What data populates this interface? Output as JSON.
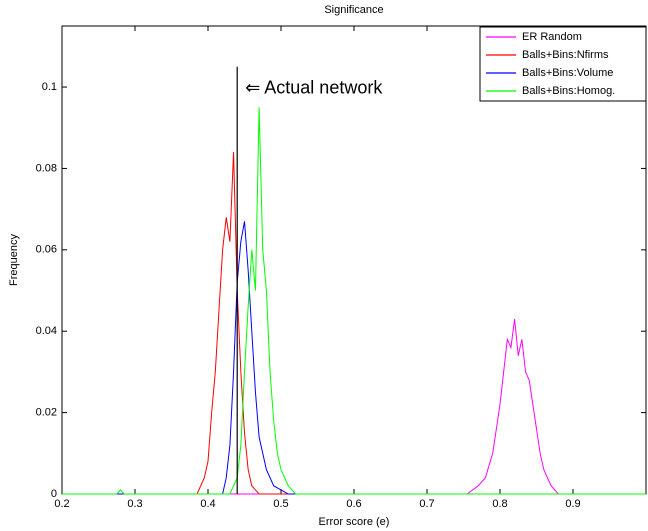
{
  "chart_data": {
    "type": "line",
    "title": "Significance",
    "x_label": "Error score (e)",
    "y_label": "Frequency",
    "xlim": [
      0.2,
      1.0
    ],
    "ylim": [
      0,
      0.115
    ],
    "xticks": [
      0.2,
      0.3,
      0.4,
      0.5,
      0.6,
      0.7,
      0.8,
      0.9
    ],
    "yticks": [
      0,
      0.02,
      0.04,
      0.06,
      0.08,
      0.1
    ],
    "legend": "upper-right",
    "series": [
      {
        "name": "ER Random",
        "color": "#ff00ff",
        "x": [
          0.2,
          0.755,
          0.77,
          0.78,
          0.79,
          0.795,
          0.8,
          0.805,
          0.81,
          0.815,
          0.82,
          0.825,
          0.83,
          0.835,
          0.84,
          0.845,
          0.85,
          0.855,
          0.86,
          0.87,
          0.88,
          1.0
        ],
        "values": [
          0,
          0,
          0.002,
          0.004,
          0.01,
          0.016,
          0.022,
          0.03,
          0.038,
          0.036,
          0.043,
          0.034,
          0.038,
          0.03,
          0.028,
          0.022,
          0.016,
          0.01,
          0.006,
          0.002,
          0,
          0
        ]
      },
      {
        "name": "Balls+Bins:Nfirms",
        "color": "#ff0000",
        "x": [
          0.2,
          0.385,
          0.395,
          0.4,
          0.405,
          0.41,
          0.415,
          0.42,
          0.425,
          0.43,
          0.435,
          0.44,
          0.445,
          0.45,
          0.455,
          0.46,
          0.47,
          1.0
        ],
        "values": [
          0,
          0,
          0.004,
          0.008,
          0.02,
          0.03,
          0.045,
          0.06,
          0.068,
          0.062,
          0.084,
          0.05,
          0.03,
          0.015,
          0.006,
          0.002,
          0,
          0
        ]
      },
      {
        "name": "Balls+Bins:Volume",
        "color": "#0000ff",
        "x": [
          0.2,
          0.42,
          0.425,
          0.43,
          0.435,
          0.44,
          0.445,
          0.45,
          0.455,
          0.46,
          0.465,
          0.47,
          0.48,
          0.49,
          0.5,
          0.51,
          1.0
        ],
        "values": [
          0,
          0,
          0.004,
          0.012,
          0.03,
          0.052,
          0.062,
          0.067,
          0.055,
          0.04,
          0.025,
          0.014,
          0.006,
          0.002,
          0.001,
          0,
          0
        ]
      },
      {
        "name": "Balls+Bins:Homog.",
        "color": "#00ff00",
        "x": [
          0.2,
          0.275,
          0.28,
          0.285,
          0.43,
          0.44,
          0.445,
          0.45,
          0.455,
          0.46,
          0.465,
          0.47,
          0.475,
          0.48,
          0.485,
          0.49,
          0.495,
          0.5,
          0.51,
          0.52,
          1.0
        ],
        "values": [
          0,
          0,
          0.001,
          0,
          0,
          0.004,
          0.012,
          0.03,
          0.046,
          0.06,
          0.05,
          0.095,
          0.06,
          0.05,
          0.03,
          0.018,
          0.01,
          0.006,
          0.002,
          0,
          0
        ]
      }
    ],
    "annotation": {
      "text": "⇐ Actual network",
      "x": 0.44,
      "height": 0.105
    }
  }
}
